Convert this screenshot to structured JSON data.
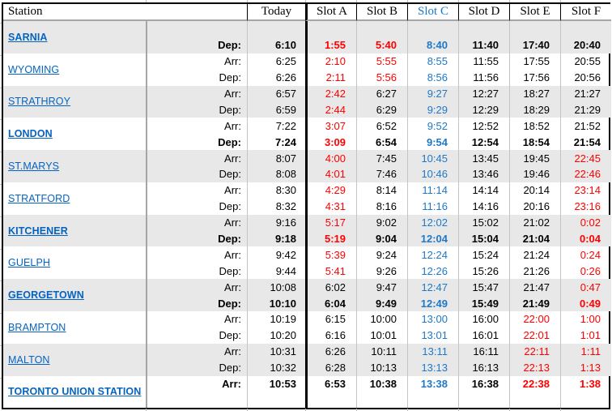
{
  "table": {
    "header": {
      "station": "Station",
      "columns": [
        {
          "label": "Today",
          "color": "black"
        },
        {
          "label": "Slot A",
          "color": "black"
        },
        {
          "label": "Slot B",
          "color": "black"
        },
        {
          "label": "Slot C",
          "color": "blue"
        },
        {
          "label": "Slot D",
          "color": "black"
        },
        {
          "label": "Slot E",
          "color": "black"
        },
        {
          "label": "Slot F",
          "color": "black"
        }
      ]
    },
    "colors": {
      "black": "#000000",
      "red": "#FF0000",
      "blue": "#1E78C8",
      "link": "#0563C1",
      "band": "#E8E8E8"
    },
    "groups": [
      {
        "station": "SARNIA",
        "bold": true,
        "shaded": true,
        "rows": [
          {
            "label": "",
            "bold": false,
            "times": [
              "",
              "",
              "",
              "",
              "",
              "",
              ""
            ],
            "colors": [
              "k",
              "k",
              "k",
              "k",
              "k",
              "k",
              "k"
            ]
          },
          {
            "label": "Dep:",
            "bold": true,
            "times": [
              "6:10",
              "1:55",
              "5:40",
              "8:40",
              "11:40",
              "17:40",
              "20:40"
            ],
            "colors": [
              "k",
              "r",
              "r",
              "b",
              "k",
              "k",
              "k"
            ]
          }
        ]
      },
      {
        "station": "WYOMING",
        "bold": false,
        "shaded": false,
        "rows": [
          {
            "label": "Arr:",
            "bold": false,
            "times": [
              "6:25",
              "2:10",
              "5:55",
              "8:55",
              "11:55",
              "17:55",
              "20:55"
            ],
            "colors": [
              "k",
              "r",
              "r",
              "b",
              "k",
              "k",
              "k"
            ]
          },
          {
            "label": "Dep:",
            "bold": false,
            "times": [
              "6:26",
              "2:11",
              "5:56",
              "8:56",
              "11:56",
              "17:56",
              "20:56"
            ],
            "colors": [
              "k",
              "r",
              "r",
              "b",
              "k",
              "k",
              "k"
            ]
          }
        ]
      },
      {
        "station": "STRATHROY",
        "bold": false,
        "shaded": true,
        "rows": [
          {
            "label": "Arr:",
            "bold": false,
            "times": [
              "6:57",
              "2:42",
              "6:27",
              "9:27",
              "12:27",
              "18:27",
              "21:27"
            ],
            "colors": [
              "k",
              "r",
              "k",
              "b",
              "k",
              "k",
              "k"
            ]
          },
          {
            "label": "Dep:",
            "bold": false,
            "times": [
              "6:59",
              "2:44",
              "6:29",
              "9:29",
              "12:29",
              "18:29",
              "21:29"
            ],
            "colors": [
              "k",
              "r",
              "k",
              "b",
              "k",
              "k",
              "k"
            ]
          }
        ]
      },
      {
        "station": "LONDON",
        "bold": true,
        "shaded": false,
        "rows": [
          {
            "label": "Arr:",
            "bold": false,
            "times": [
              "7:22",
              "3:07",
              "6:52",
              "9:52",
              "12:52",
              "18:52",
              "21:52"
            ],
            "colors": [
              "k",
              "r",
              "k",
              "b",
              "k",
              "k",
              "k"
            ]
          },
          {
            "label": "Dep:",
            "bold": true,
            "times": [
              "7:24",
              "3:09",
              "6:54",
              "9:54",
              "12:54",
              "18:54",
              "21:54"
            ],
            "colors": [
              "k",
              "r",
              "k",
              "b",
              "k",
              "k",
              "k"
            ]
          }
        ]
      },
      {
        "station": "ST.MARYS",
        "bold": false,
        "shaded": true,
        "rows": [
          {
            "label": "Arr:",
            "bold": false,
            "times": [
              "8:07",
              "4:00",
              "7:45",
              "10:45",
              "13:45",
              "19:45",
              "22:45"
            ],
            "colors": [
              "k",
              "r",
              "k",
              "b",
              "k",
              "k",
              "r"
            ]
          },
          {
            "label": "Dep:",
            "bold": false,
            "times": [
              "8:08",
              "4:01",
              "7:46",
              "10:46",
              "13:46",
              "19:46",
              "22:46"
            ],
            "colors": [
              "k",
              "r",
              "k",
              "b",
              "k",
              "k",
              "r"
            ]
          }
        ]
      },
      {
        "station": "STRATFORD",
        "bold": false,
        "shaded": false,
        "rows": [
          {
            "label": "Arr:",
            "bold": false,
            "times": [
              "8:30",
              "4:29",
              "8:14",
              "11:14",
              "14:14",
              "20:14",
              "23:14"
            ],
            "colors": [
              "k",
              "r",
              "k",
              "b",
              "k",
              "k",
              "r"
            ]
          },
          {
            "label": "Dep:",
            "bold": false,
            "times": [
              "8:32",
              "4:31",
              "8:16",
              "11:16",
              "14:16",
              "20:16",
              "23:16"
            ],
            "colors": [
              "k",
              "r",
              "k",
              "b",
              "k",
              "k",
              "r"
            ]
          }
        ]
      },
      {
        "station": "KITCHENER",
        "bold": true,
        "shaded": true,
        "rows": [
          {
            "label": "Arr:",
            "bold": false,
            "times": [
              "9:16",
              "5:17",
              "9:02",
              "12:02",
              "15:02",
              "21:02",
              "0:02"
            ],
            "colors": [
              "k",
              "r",
              "k",
              "b",
              "k",
              "k",
              "r"
            ]
          },
          {
            "label": "Dep:",
            "bold": true,
            "times": [
              "9:18",
              "5:19",
              "9:04",
              "12:04",
              "15:04",
              "21:04",
              "0:04"
            ],
            "colors": [
              "k",
              "r",
              "k",
              "b",
              "k",
              "k",
              "r"
            ]
          }
        ]
      },
      {
        "station": "GUELPH",
        "bold": false,
        "shaded": false,
        "rows": [
          {
            "label": "Arr:",
            "bold": false,
            "times": [
              "9:42",
              "5:39",
              "9:24",
              "12:24",
              "15:24",
              "21:24",
              "0:24"
            ],
            "colors": [
              "k",
              "r",
              "k",
              "b",
              "k",
              "k",
              "r"
            ]
          },
          {
            "label": "Dep:",
            "bold": false,
            "times": [
              "9:44",
              "5:41",
              "9:26",
              "12:26",
              "15:26",
              "21:26",
              "0:26"
            ],
            "colors": [
              "k",
              "r",
              "k",
              "b",
              "k",
              "k",
              "r"
            ]
          }
        ]
      },
      {
        "station": "GEORGETOWN",
        "bold": true,
        "shaded": true,
        "rows": [
          {
            "label": "Arr:",
            "bold": false,
            "times": [
              "10:08",
              "6:02",
              "9:47",
              "12:47",
              "15:47",
              "21:47",
              "0:47"
            ],
            "colors": [
              "k",
              "k",
              "k",
              "b",
              "k",
              "k",
              "r"
            ]
          },
          {
            "label": "Dep:",
            "bold": true,
            "times": [
              "10:10",
              "6:04",
              "9:49",
              "12:49",
              "15:49",
              "21:49",
              "0:49"
            ],
            "colors": [
              "k",
              "k",
              "k",
              "b",
              "k",
              "k",
              "r"
            ]
          }
        ]
      },
      {
        "station": "BRAMPTON",
        "bold": false,
        "shaded": false,
        "rows": [
          {
            "label": "Arr:",
            "bold": false,
            "times": [
              "10:19",
              "6:15",
              "10:00",
              "13:00",
              "16:00",
              "22:00",
              "1:00"
            ],
            "colors": [
              "k",
              "k",
              "k",
              "b",
              "k",
              "r",
              "r"
            ]
          },
          {
            "label": "Dep:",
            "bold": false,
            "times": [
              "10:20",
              "6:16",
              "10:01",
              "13:01",
              "16:01",
              "22:01",
              "1:01"
            ],
            "colors": [
              "k",
              "k",
              "k",
              "b",
              "k",
              "r",
              "r"
            ]
          }
        ]
      },
      {
        "station": "MALTON",
        "bold": false,
        "shaded": true,
        "rows": [
          {
            "label": "Arr:",
            "bold": false,
            "times": [
              "10:31",
              "6:26",
              "10:11",
              "13:11",
              "16:11",
              "22:11",
              "1:11"
            ],
            "colors": [
              "k",
              "k",
              "k",
              "b",
              "k",
              "r",
              "r"
            ]
          },
          {
            "label": "Dep:",
            "bold": false,
            "times": [
              "10:32",
              "6:28",
              "10:13",
              "13:13",
              "16:13",
              "22:13",
              "1:13"
            ],
            "colors": [
              "k",
              "k",
              "k",
              "b",
              "k",
              "r",
              "r"
            ]
          }
        ]
      },
      {
        "station": "TORONTO UNION STATION",
        "bold": true,
        "shaded": false,
        "rows": [
          {
            "label": "Arr:",
            "bold": true,
            "times": [
              "10:53",
              "6:53",
              "10:38",
              "13:38",
              "16:38",
              "22:38",
              "1:38"
            ],
            "colors": [
              "k",
              "k",
              "k",
              "b",
              "k",
              "r",
              "r"
            ]
          },
          {
            "label": "",
            "bold": false,
            "times": [
              "",
              "",
              "",
              "",
              "",
              "",
              ""
            ],
            "colors": [
              "k",
              "k",
              "k",
              "k",
              "k",
              "k",
              "k"
            ]
          }
        ]
      }
    ]
  }
}
